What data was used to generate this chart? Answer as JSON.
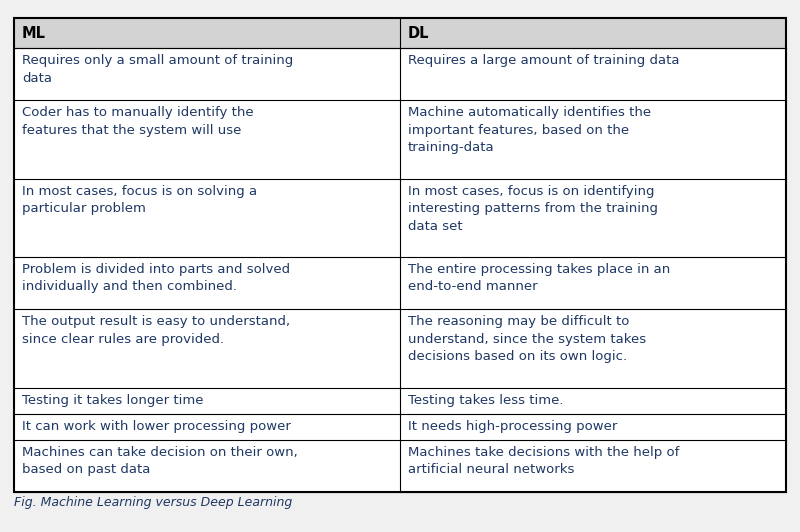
{
  "title": "Fig. Machine Learning versus Deep Learning",
  "header_bg": "#d3d3d3",
  "cell_bg": "#ffffff",
  "border_color": "#000000",
  "header_text_color": "#000000",
  "cell_text_color": "#1f3864",
  "header_font_size": 10.5,
  "cell_font_size": 9.5,
  "caption_font_size": 9,
  "col1_header": "ML",
  "col2_header": "DL",
  "rows": [
    [
      "Requires only a small amount of training\ndata",
      "Requires a large amount of training data"
    ],
    [
      "Coder has to manually identify the\nfeatures that the system will use",
      "Machine automatically identifies the\nimportant features, based on the\ntraining-data"
    ],
    [
      "In most cases, focus is on solving a\nparticular problem",
      "In most cases, focus is on identifying\ninteresting patterns from the training\ndata set"
    ],
    [
      "Problem is divided into parts and solved\nindividually and then combined.",
      "The entire processing takes place in an\nend-to-end manner"
    ],
    [
      "The output result is easy to understand,\nsince clear rules are provided.",
      "The reasoning may be difficult to\nunderstand, since the system takes\ndecisions based on its own logic."
    ],
    [
      "Testing it takes longer time",
      "Testing takes less time."
    ],
    [
      "It can work with lower processing power",
      "It needs high-processing power"
    ],
    [
      "Machines can take decision on their own,\nbased on past data",
      "Machines take decisions with the help of\nartificial neural networks"
    ]
  ],
  "fig_width": 8.0,
  "fig_height": 5.32,
  "fig_dpi": 100,
  "bg_color": "#f0f0f0"
}
